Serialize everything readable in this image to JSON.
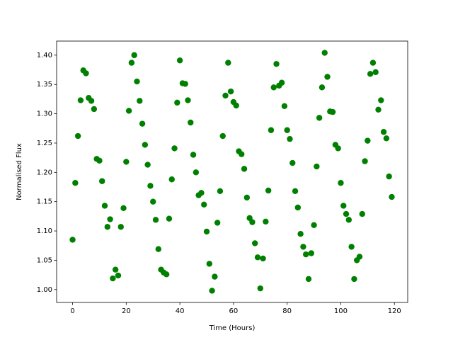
{
  "chart_data": {
    "type": "scatter",
    "xlabel": "Time (Hours)",
    "ylabel": "Normalised Flux",
    "color": "green",
    "x": [
      0,
      1,
      2,
      3,
      4,
      5,
      6,
      7,
      8,
      9,
      10,
      11,
      12,
      13,
      14,
      15,
      16,
      17,
      18,
      19,
      20,
      21,
      22,
      23,
      24,
      25,
      26,
      27,
      28,
      29,
      30,
      31,
      32,
      33,
      34,
      35,
      36,
      37,
      38,
      39,
      40,
      41,
      42,
      43,
      44,
      45,
      46,
      47,
      48,
      49,
      50,
      51,
      52,
      53,
      54,
      55,
      56,
      57,
      58,
      59,
      60,
      61,
      62,
      63,
      64,
      65,
      66,
      67,
      68,
      69,
      70,
      71,
      72,
      73,
      74,
      75,
      76,
      77,
      78,
      79,
      80,
      81,
      82,
      83,
      84,
      85,
      86,
      87,
      88,
      89,
      90,
      91,
      92,
      93,
      94,
      95,
      96,
      97,
      98,
      99,
      100,
      101,
      102,
      103,
      104,
      105,
      106,
      107,
      108,
      109,
      110,
      111,
      112,
      113,
      114,
      115,
      116,
      117,
      118,
      119
    ],
    "values": [
      1.085,
      1.182,
      1.262,
      1.323,
      1.374,
      1.369,
      1.327,
      1.322,
      1.308,
      1.223,
      1.22,
      1.185,
      1.143,
      1.107,
      1.12,
      1.019,
      1.034,
      1.024,
      1.107,
      1.139,
      1.218,
      1.305,
      1.387,
      1.4,
      1.355,
      1.322,
      1.283,
      1.247,
      1.213,
      1.177,
      1.15,
      1.119,
      1.069,
      1.034,
      1.029,
      1.026,
      1.121,
      1.188,
      1.241,
      1.319,
      1.391,
      1.352,
      1.351,
      1.323,
      1.285,
      1.23,
      1.2,
      1.161,
      1.165,
      1.145,
      1.099,
      1.044,
      0.998,
      1.022,
      1.114,
      1.168,
      1.262,
      1.331,
      1.387,
      1.338,
      1.32,
      1.314,
      1.236,
      1.231,
      1.206,
      1.157,
      1.122,
      1.115,
      1.079,
      1.055,
      1.002,
      1.053,
      1.116,
      1.169,
      1.272,
      1.345,
      1.385,
      1.348,
      1.353,
      1.313,
      1.272,
      1.257,
      1.216,
      1.168,
      1.14,
      1.095,
      1.073,
      1.06,
      1.018,
      1.062,
      1.11,
      1.21,
      1.293,
      1.345,
      1.404,
      1.363,
      1.304,
      1.303,
      1.247,
      1.241,
      1.182,
      1.143,
      1.129,
      1.119,
      1.073,
      1.018,
      1.05,
      1.056,
      1.129,
      1.219,
      1.254,
      1.368,
      1.387,
      1.371,
      1.307,
      1.323,
      1.269,
      1.258,
      1.193,
      1.158
    ],
    "xlim": [
      -5.95,
      124.95
    ],
    "xticks": [
      0,
      20,
      40,
      60,
      80,
      100,
      120
    ],
    "ylim": [
      0.978,
      1.424
    ],
    "yticks": [
      {
        "value": 1.0,
        "label": "1.00"
      },
      1.05,
      {
        "value": 1.1,
        "label": "1.10"
      },
      1.15,
      {
        "value": 1.2,
        "label": "1.20"
      },
      1.25,
      {
        "value": 1.3,
        "label": "1.30"
      },
      1.35,
      {
        "value": 1.4,
        "label": "1.40"
      }
    ]
  }
}
